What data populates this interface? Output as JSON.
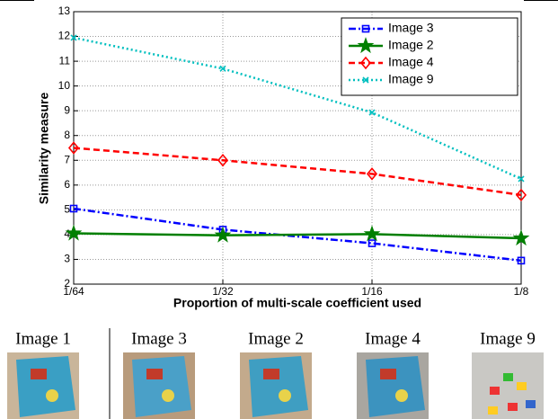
{
  "chart_data": {
    "type": "line",
    "xlabel": "Proportion of multi-scale coefficient used",
    "ylabel": "Similarity measure",
    "categories": [
      "1/64",
      "1/32",
      "1/16",
      "1/8"
    ],
    "ylim": [
      2,
      13
    ],
    "yticks": [
      2,
      3,
      4,
      5,
      6,
      7,
      8,
      9,
      10,
      11,
      12,
      13
    ],
    "grid": true,
    "legend": "upper right",
    "series": [
      {
        "name": "Image 3",
        "color": "#0000ff",
        "dash": "dashdot",
        "marker": "square",
        "values": [
          5.05,
          4.2,
          3.65,
          2.95
        ]
      },
      {
        "name": "Image 2",
        "color": "#007f00",
        "dash": "solid",
        "marker": "star",
        "values": [
          4.05,
          3.97,
          4.02,
          3.85
        ]
      },
      {
        "name": "Image 4",
        "color": "#ff0000",
        "dash": "dashed",
        "marker": "diamond",
        "values": [
          7.5,
          7.0,
          6.45,
          5.6
        ]
      },
      {
        "name": "Image 9",
        "color": "#00bfbf",
        "dash": "dotted",
        "marker": "x",
        "values": [
          11.95,
          10.7,
          8.93,
          6.25
        ]
      }
    ]
  },
  "images": [
    {
      "caption": "Image 1"
    },
    {
      "caption": "Image 3"
    },
    {
      "caption": "Image 2"
    },
    {
      "caption": "Image 4"
    },
    {
      "caption": "Image 9"
    }
  ]
}
